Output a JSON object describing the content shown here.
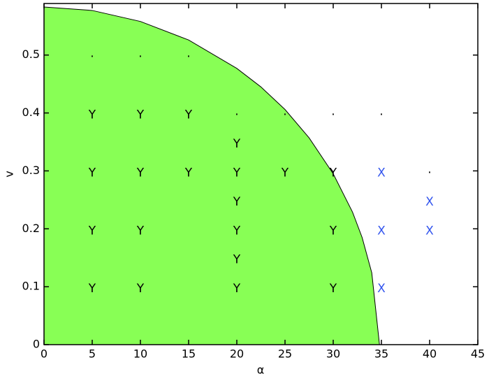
{
  "chart_data": {
    "type": "scatter",
    "x_label": "α",
    "y_label": "v",
    "xlim": [
      0,
      45
    ],
    "ylim": [
      0,
      0.589
    ],
    "xticks": [
      0,
      5,
      10,
      15,
      20,
      25,
      30,
      35,
      40,
      45
    ],
    "yticks": [
      0,
      0.1,
      0.2,
      0.3,
      0.4,
      0.5
    ],
    "region": {
      "color": "#88ff55",
      "x": [
        0,
        5,
        10,
        15,
        20,
        22.5,
        25,
        27.5,
        30,
        32,
        33,
        34,
        34.8
      ],
      "y": [
        0.583,
        0.577,
        0.558,
        0.526,
        0.477,
        0.445,
        0.406,
        0.357,
        0.295,
        0.229,
        0.185,
        0.124,
        0
      ]
    },
    "series": [
      {
        "label": "Y",
        "color": "#000000",
        "x": [
          5,
          10,
          15,
          20,
          5,
          10,
          15,
          20,
          25,
          30,
          20,
          5,
          10,
          20,
          30,
          20,
          5,
          10,
          20,
          30
        ],
        "y": [
          0.4,
          0.4,
          0.4,
          0.35,
          0.3,
          0.3,
          0.3,
          0.3,
          0.3,
          0.3,
          0.25,
          0.2,
          0.2,
          0.2,
          0.2,
          0.15,
          0.1,
          0.1,
          0.1,
          0.1
        ]
      },
      {
        "label": "X",
        "color": "#3355ee",
        "x": [
          35,
          40,
          35,
          40,
          35
        ],
        "y": [
          0.3,
          0.25,
          0.2,
          0.2,
          0.1
        ]
      },
      {
        "label": "·",
        "color": "#000000",
        "x": [
          5,
          10,
          15,
          20,
          25,
          30,
          35,
          40
        ],
        "y": [
          0.5,
          0.5,
          0.5,
          0.4,
          0.4,
          0.4,
          0.4,
          0.3
        ]
      }
    ]
  }
}
